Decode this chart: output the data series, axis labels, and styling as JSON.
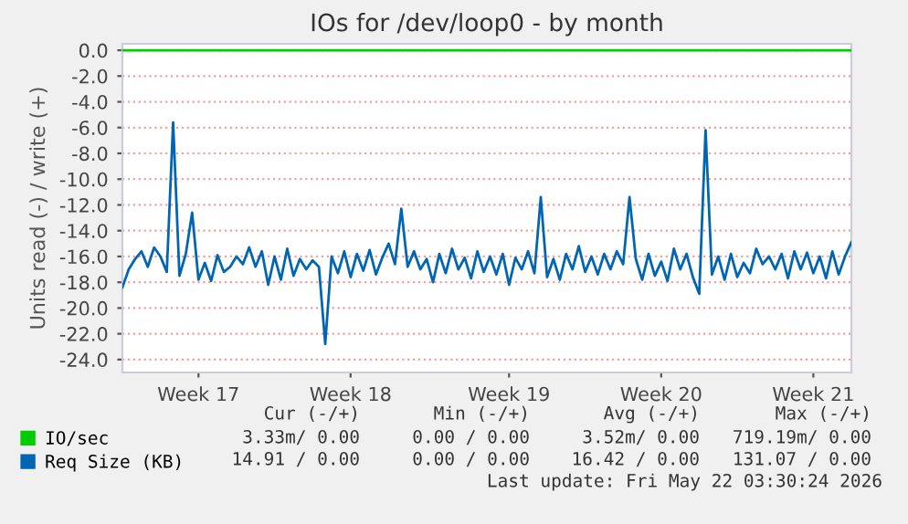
{
  "chart_data": {
    "type": "line",
    "title": "IOs for /dev/loop0 - by month",
    "ylabel": "Units read (-) / write (+)",
    "categories": [
      null,
      null,
      null,
      null,
      null,
      null,
      null,
      null,
      null,
      null,
      null,
      null,
      "Week 17",
      null,
      null,
      null,
      null,
      null,
      null,
      null,
      null,
      null,
      null,
      null,
      null,
      null,
      null,
      null,
      null,
      null,
      null,
      null,
      null,
      null,
      null,
      null,
      "Week 18",
      null,
      null,
      null,
      null,
      null,
      null,
      null,
      null,
      null,
      null,
      null,
      null,
      null,
      null,
      null,
      null,
      null,
      null,
      null,
      null,
      null,
      null,
      null,
      null,
      "Week 19",
      null,
      null,
      null,
      null,
      null,
      null,
      null,
      null,
      null,
      null,
      null,
      null,
      null,
      null,
      null,
      null,
      null,
      null,
      null,
      null,
      null,
      null,
      null,
      "Week 20",
      null,
      null,
      null,
      null,
      null,
      null,
      null,
      null,
      null,
      null,
      null,
      null,
      null,
      null,
      null,
      null,
      null,
      null,
      null,
      null,
      null,
      null,
      null,
      "Week 21",
      null,
      null,
      null,
      null,
      null,
      null
    ],
    "series": [
      {
        "name": "IO/sec",
        "color": "#00cc00",
        "values": [
          0,
          0,
          0,
          0,
          0,
          0,
          0,
          0,
          0,
          0,
          0,
          0,
          0,
          0,
          0,
          0,
          0,
          0,
          0,
          0,
          0,
          0,
          0,
          0,
          0,
          0,
          0,
          0,
          0,
          0,
          0,
          0,
          0,
          0,
          0,
          0,
          0,
          0,
          0,
          0,
          0,
          0,
          0,
          0,
          0,
          0,
          0,
          0,
          0,
          0,
          0,
          0,
          0,
          0,
          0,
          0,
          0,
          0,
          0,
          0,
          0,
          0,
          0,
          0,
          0,
          0,
          0,
          0,
          0,
          0,
          0,
          0,
          0,
          0,
          0,
          0,
          0,
          0,
          0,
          0,
          0,
          0,
          0,
          0,
          0,
          0,
          0,
          0,
          0,
          0,
          0,
          0,
          0,
          0,
          0,
          0,
          0,
          0,
          0,
          0,
          0,
          0,
          0,
          0,
          0,
          0,
          0,
          0,
          0,
          0,
          0,
          0,
          0,
          0,
          0,
          0
        ]
      },
      {
        "name": "Req Size (KB)",
        "color": "#0066b3",
        "values": [
          -18.4,
          -17.0,
          -16.2,
          -15.6,
          -16.8,
          -15.3,
          -16.0,
          -17.2,
          -5.6,
          -17.5,
          -15.8,
          -12.6,
          -17.8,
          -16.5,
          -17.9,
          -15.9,
          -17.2,
          -16.8,
          -16.0,
          -16.6,
          -15.3,
          -16.8,
          -15.6,
          -18.2,
          -16.0,
          -17.8,
          -15.4,
          -17.5,
          -16.2,
          -17.0,
          -16.3,
          -16.8,
          -22.8,
          -16.0,
          -17.3,
          -15.6,
          -17.6,
          -15.8,
          -17.1,
          -15.5,
          -17.4,
          -16.1,
          -15.0,
          -16.6,
          -12.3,
          -16.8,
          -15.6,
          -17.0,
          -16.2,
          -18.0,
          -15.8,
          -17.3,
          -15.4,
          -17.0,
          -16.1,
          -17.7,
          -15.6,
          -17.2,
          -16.0,
          -17.4,
          -15.8,
          -18.2,
          -16.1,
          -17.0,
          -15.6,
          -17.3,
          -11.4,
          -17.6,
          -16.2,
          -17.8,
          -15.8,
          -17.0,
          -15.2,
          -17.2,
          -16.0,
          -17.4,
          -15.8,
          -17.0,
          -15.6,
          -16.6,
          -11.4,
          -16.2,
          -17.8,
          -15.8,
          -17.5,
          -16.4,
          -17.9,
          -15.4,
          -17.0,
          -15.8,
          -17.6,
          -18.9,
          -6.2,
          -17.4,
          -16.0,
          -17.8,
          -15.8,
          -17.6,
          -16.5,
          -17.3,
          -15.4,
          -16.6,
          -16.0,
          -17.0,
          -15.8,
          -17.7,
          -15.6,
          -17.0,
          -15.7,
          -17.3,
          -16.0,
          -17.7,
          -15.6,
          -17.4,
          -16.0,
          -14.9
        ]
      }
    ],
    "ylim": [
      -25,
      0.5
    ],
    "yticks": [
      {
        "value": 0,
        "label": "0.0"
      },
      {
        "value": -2,
        "label": "-2.0"
      },
      {
        "value": -4,
        "label": "-4.0"
      },
      {
        "value": -6,
        "label": "-6.0"
      },
      {
        "value": -8,
        "label": "-8.0"
      },
      {
        "value": -10,
        "label": "-10.0"
      },
      {
        "value": -12,
        "label": "-12.0"
      },
      {
        "value": -14,
        "label": "-14.0"
      },
      {
        "value": -16,
        "label": "-16.0"
      },
      {
        "value": -18,
        "label": "-18.0"
      },
      {
        "value": -20,
        "label": "-20.0"
      },
      {
        "value": -22,
        "label": "-22.0"
      },
      {
        "value": -24,
        "label": "-24.0"
      }
    ],
    "grid": "y",
    "legend": "bottom left",
    "line_style": "solid",
    "annotations": [
      "Cur (-/+)",
      "Min (-/+)",
      "Avg (-/+)",
      "Max (-/+)",
      "3.33m/ 0.00",
      "0.00 / 0.00",
      "3.52m/ 0.00",
      "719.19m/ 0.00",
      "14.91 / 0.00",
      "0.00 / 0.00",
      "16.42 / 0.00",
      "131.07 / 0.00",
      "Last update: Fri May 22 03:30:24 2026"
    ]
  }
}
